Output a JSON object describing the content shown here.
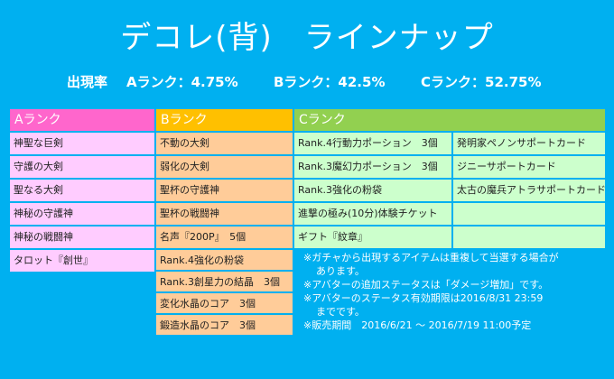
{
  "title": "デコレ(背)　ラインナップ",
  "rates": {
    "label": "出現率",
    "a": "Aランク：4.75%",
    "b": "Bランク：42.5%",
    "c": "Cランク：52.75%"
  },
  "headers": {
    "a": "Aランク",
    "b": "Bランク",
    "c": "Cランク"
  },
  "rank_a": [
    "神聖な巨剣",
    "守護の大剣",
    "聖なる大剣",
    "神秘の守護神",
    "神秘の戦闘神",
    "タロット『創世』"
  ],
  "rank_b": [
    "不動の大剣",
    "弱化の大剣",
    "聖杯の守護神",
    "聖杯の戦闘神",
    "名声『200P』　5個",
    "Rank.4強化の粉袋",
    "Rank.3創星力の結晶　3個",
    "変化水晶のコア　3個",
    "鍛造水晶のコア　3個"
  ],
  "rank_c_left": [
    "Rank.4行動力ポーション　3個",
    "Rank.3魔幻力ポーション　3個",
    "Rank.3強化の粉袋",
    "進撃の極み(10分)体験チケット",
    "ギフト『紋章』"
  ],
  "rank_c_right": [
    "発明家ペノンサポートカード",
    "ジニーサポートカード",
    "太古の魔兵アトラサポートカード",
    "",
    ""
  ],
  "notes": {
    "n1": "※ガチャから出現するアイテムは重複して当選する場合が",
    "n1b": "あります。",
    "n2": "※アバターの追加ステータスは「ダメージ増加」です。",
    "n3": "※アバターのステータス有効期限は2016/8/31 23:59",
    "n3b": "までです。",
    "n4": "※販売期間　2016/6/21 ～ 2016/7/19 11:00予定"
  }
}
